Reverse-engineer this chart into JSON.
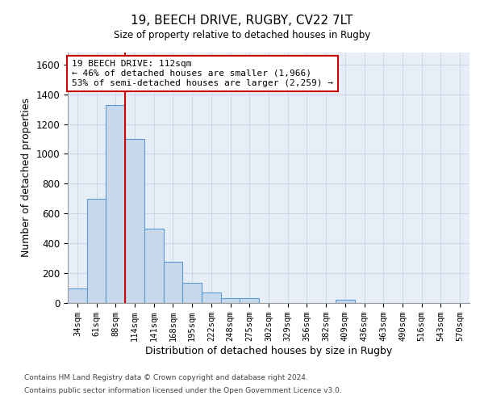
{
  "title_line1": "19, BEECH DRIVE, RUGBY, CV22 7LT",
  "title_line2": "Size of property relative to detached houses in Rugby",
  "xlabel": "Distribution of detached houses by size in Rugby",
  "ylabel": "Number of detached properties",
  "bar_color": "#c9d9ec",
  "bar_edgecolor": "#5b9bd5",
  "grid_color": "#c8d4e4",
  "vline_color": "#cc0000",
  "vline_x": 3,
  "annotation_line1": "19 BEECH DRIVE: 112sqm",
  "annotation_line2": "← 46% of detached houses are smaller (1,966)",
  "annotation_line3": "53% of semi-detached houses are larger (2,259) →",
  "annotation_box_color": "#cc0000",
  "footer_line1": "Contains HM Land Registry data © Crown copyright and database right 2024.",
  "footer_line2": "Contains public sector information licensed under the Open Government Licence v3.0.",
  "categories": [
    "34sqm",
    "61sqm",
    "88sqm",
    "114sqm",
    "141sqm",
    "168sqm",
    "195sqm",
    "222sqm",
    "248sqm",
    "275sqm",
    "302sqm",
    "329sqm",
    "356sqm",
    "382sqm",
    "409sqm",
    "436sqm",
    "463sqm",
    "490sqm",
    "516sqm",
    "543sqm",
    "570sqm"
  ],
  "bar_heights": [
    97,
    700,
    1330,
    1100,
    500,
    275,
    137,
    72,
    33,
    33,
    0,
    0,
    0,
    0,
    20,
    0,
    0,
    0,
    0,
    0,
    0
  ],
  "ylim": [
    0,
    1680
  ],
  "yticks": [
    0,
    200,
    400,
    600,
    800,
    1000,
    1200,
    1400,
    1600
  ],
  "figsize": [
    6.0,
    5.0
  ],
  "dpi": 100,
  "background_color": "#ffffff",
  "plot_bg_color": "#e8eef8"
}
